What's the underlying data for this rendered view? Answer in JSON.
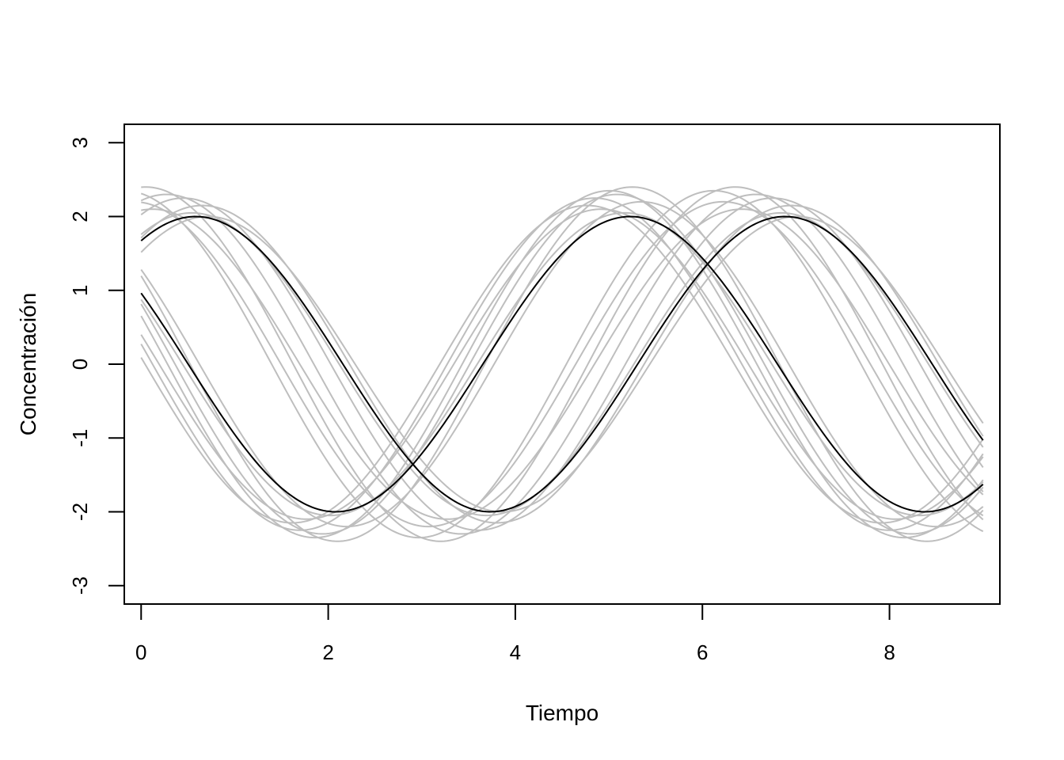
{
  "chart_data": {
    "type": "line",
    "title": "",
    "xlabel": "Tiempo",
    "ylabel": "Concentración",
    "xlim": [
      -0.18,
      9.18
    ],
    "ylim": [
      -3.25,
      3.25
    ],
    "x_ticks": [
      0,
      2,
      4,
      6,
      8
    ],
    "y_ticks": [
      -3,
      -2,
      -1,
      0,
      1,
      2,
      3
    ],
    "x_tick_labels": [
      "0",
      "2",
      "4",
      "6",
      "8"
    ],
    "y_tick_labels": [
      "-3",
      "-2",
      "-1",
      "0",
      "1",
      "2",
      "3"
    ],
    "x_range": [
      0,
      9
    ],
    "grid": false,
    "legend": "none",
    "colors": {
      "main": "#000000",
      "samples": "#bebebe",
      "frame": "#000000"
    },
    "model": "y = amplitude * sin(2*pi*x/period + phase)",
    "main_series": [
      {
        "amplitude": 2.0,
        "period": 6.3,
        "phase": 0.99
      },
      {
        "amplitude": 2.0,
        "period": 6.3,
        "phase": 2.64
      }
    ],
    "sample_series": [
      {
        "amplitude": 2.05,
        "period": 6.3,
        "phase": 1.03
      },
      {
        "amplitude": 2.3,
        "period": 6.3,
        "phase": 1.3
      },
      {
        "amplitude": 2.1,
        "period": 6.3,
        "phase": 1.45
      },
      {
        "amplitude": 2.2,
        "period": 6.3,
        "phase": 1.65
      },
      {
        "amplitude": 2.35,
        "period": 6.3,
        "phase": 1.75
      },
      {
        "amplitude": 2.15,
        "period": 6.3,
        "phase": 0.92
      },
      {
        "amplitude": 2.25,
        "period": 6.3,
        "phase": 1.12
      },
      {
        "amplitude": 2.4,
        "period": 6.3,
        "phase": 1.52
      },
      {
        "amplitude": 2.0,
        "period": 6.3,
        "phase": 0.86
      },
      {
        "amplitude": 2.2,
        "period": 6.3,
        "phase": 2.52
      },
      {
        "amplitude": 2.3,
        "period": 6.3,
        "phase": 2.78
      },
      {
        "amplitude": 2.1,
        "period": 6.3,
        "phase": 2.95
      },
      {
        "amplitude": 2.35,
        "period": 6.3,
        "phase": 2.86
      },
      {
        "amplitude": 2.05,
        "period": 6.3,
        "phase": 2.7
      },
      {
        "amplitude": 2.25,
        "period": 6.3,
        "phase": 3.02
      },
      {
        "amplitude": 2.4,
        "period": 6.3,
        "phase": 2.62
      },
      {
        "amplitude": 2.15,
        "period": 6.3,
        "phase": 3.1
      }
    ]
  }
}
